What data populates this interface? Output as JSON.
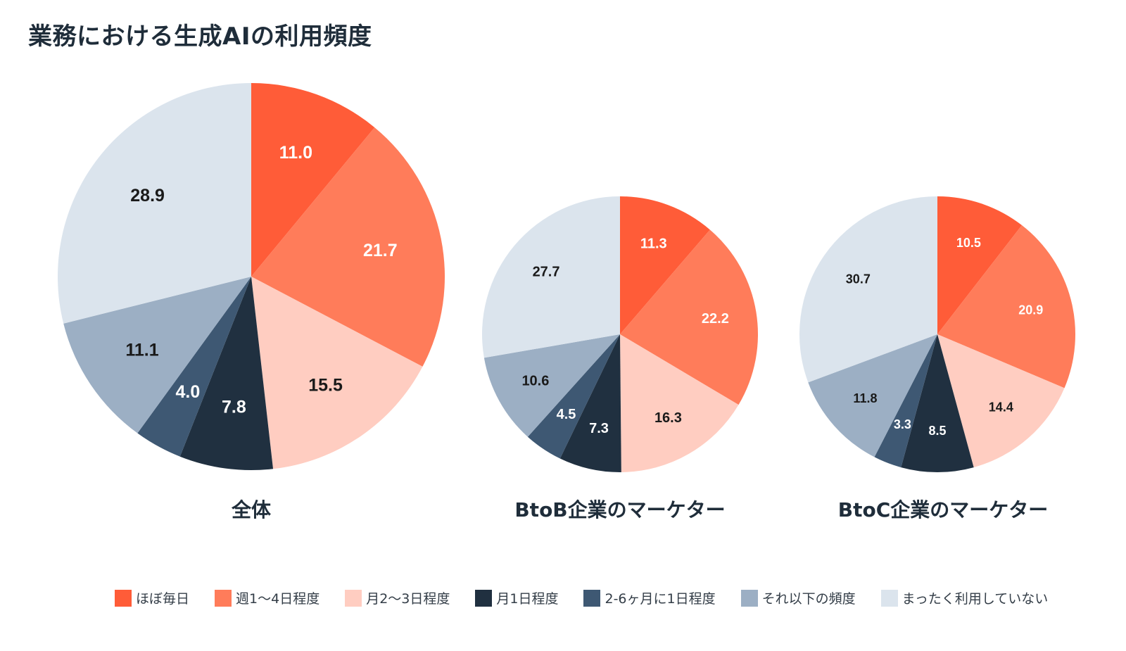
{
  "title": "業務における生成AIの利用頻度",
  "colors": [
    "#ff5c38",
    "#ff7c5a",
    "#ffcdc1",
    "#203040",
    "#3e5873",
    "#9cafc4",
    "#dbe4ed"
  ],
  "label_colors": [
    "#ffffff",
    "#ffffff",
    "#1a1a1a",
    "#ffffff",
    "#ffffff",
    "#1a1a1a",
    "#1a1a1a"
  ],
  "chart_data": {
    "type": "pie",
    "categories": [
      "ほぼ毎日",
      "週1〜4日程度",
      "月2〜3日程度",
      "月1日程度",
      "2-6ヶ月に1日程度",
      "それ以下の頻度",
      "まったく利用していない"
    ],
    "legend_position": "bottom",
    "charts": [
      {
        "label": "全体",
        "values": [
          11.0,
          21.7,
          15.5,
          7.8,
          4.0,
          11.1,
          28.9
        ],
        "value_labels": [
          "11.0",
          "21.7",
          "15.5",
          "7.8",
          "4.0",
          "11.1",
          "28.9"
        ]
      },
      {
        "label": "BtoB企業のマーケター",
        "values": [
          11.3,
          22.2,
          16.3,
          7.3,
          4.5,
          10.6,
          27.7
        ],
        "value_labels": [
          "11.3",
          "22.2",
          "16.3",
          "7.3",
          "4.5",
          "10.6",
          "27.7"
        ]
      },
      {
        "label": "BtoC企業のマーケター",
        "values": [
          10.5,
          20.9,
          14.4,
          8.5,
          3.3,
          11.8,
          30.7
        ],
        "value_labels": [
          "10.5",
          "20.9",
          "14.4",
          "8.5",
          "3.3",
          "11.8",
          "30.7"
        ]
      }
    ]
  }
}
